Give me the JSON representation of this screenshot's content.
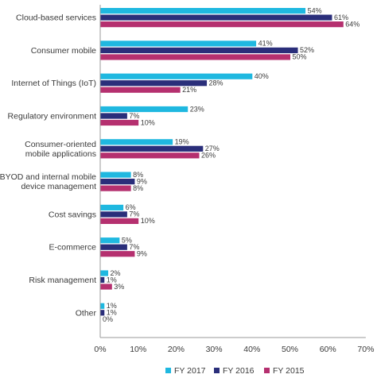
{
  "chart_data": {
    "type": "bar",
    "orientation": "horizontal",
    "categories": [
      [
        "Cloud-based services"
      ],
      [
        "Consumer mobile"
      ],
      [
        "Internet of Things (IoT)"
      ],
      [
        "Regulatory environment"
      ],
      [
        "Consumer-oriented",
        "mobile applications"
      ],
      [
        "BYOD and internal mobile",
        "device management"
      ],
      [
        "Cost savings"
      ],
      [
        "E-commerce"
      ],
      [
        "Risk management"
      ],
      [
        "Other"
      ]
    ],
    "series": [
      {
        "name": "FY 2017",
        "color": "#1fb8e0",
        "values": [
          54,
          41,
          40,
          23,
          19,
          8,
          6,
          5,
          2,
          1
        ]
      },
      {
        "name": "FY 2016",
        "color": "#2a2e7a",
        "values": [
          61,
          52,
          28,
          7,
          27,
          9,
          7,
          7,
          1,
          1
        ]
      },
      {
        "name": "FY 2015",
        "color": "#b5306f",
        "values": [
          64,
          50,
          21,
          10,
          26,
          8,
          10,
          9,
          3,
          0
        ]
      }
    ],
    "xlim": [
      0,
      70
    ],
    "xticks": [
      "0%",
      "10%",
      "20%",
      "30%",
      "40%",
      "50%",
      "60%",
      "70%"
    ],
    "value_suffix": "%",
    "grid": false,
    "legend_position": "bottom"
  }
}
